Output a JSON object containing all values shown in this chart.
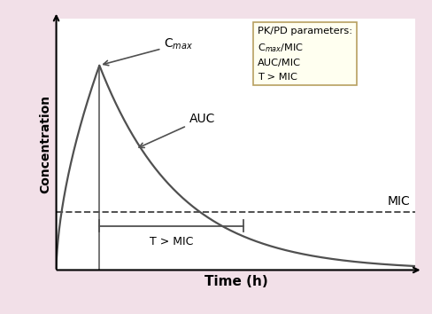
{
  "xlabel": "Time (h)",
  "ylabel": "Concentration",
  "background_color": "#f2e0e8",
  "plot_bg_color": "#ffffff",
  "curve_color": "#505050",
  "dashed_color": "#505050",
  "arrow_color": "#505050",
  "mic_level": 0.25,
  "cmax_level": 0.88,
  "cmax_time": 0.12,
  "t_mic_cross": 0.52,
  "decay_k": 4.5,
  "xlim": [
    0,
    1.0
  ],
  "ylim": [
    0,
    1.08
  ],
  "box_title": "PK/PD parameters:",
  "box_line1": "C$_{max}$/MIC",
  "box_line2": "AUC/MIC",
  "box_line3": "T > MIC",
  "box_facecolor": "#fffff0",
  "box_edgecolor": "#b8a060",
  "annotation_auc": "AUC",
  "annotation_cmax": "C$_{max}$",
  "annotation_tmic": "T > MIC",
  "annotation_mic": "MIC",
  "border_color": "#d8a8b8",
  "border_lw": 2.0
}
